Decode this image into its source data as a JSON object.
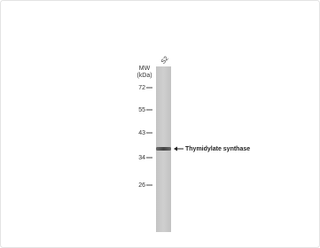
{
  "figure": {
    "mw_label": "MW",
    "unit_label": "(kDa)",
    "lane_label": "S2",
    "markers": [
      "72",
      "55",
      "43",
      "34",
      "26"
    ],
    "band_label": "Thymidylate synthase"
  }
}
